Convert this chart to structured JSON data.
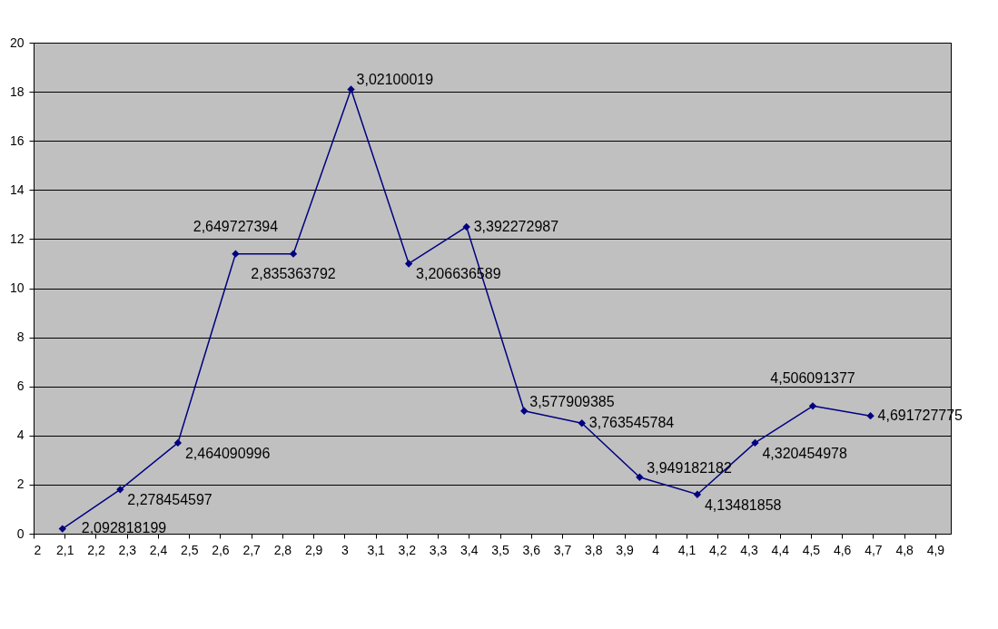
{
  "chart_data": {
    "type": "line",
    "x": [
      2.092818199,
      2.278454597,
      2.464090996,
      2.649727394,
      2.835363792,
      3.02100019,
      3.206636589,
      3.392272987,
      3.577909385,
      3.763545784,
      3.949182182,
      4.13481858,
      4.320454978,
      4.506091377,
      4.691727775
    ],
    "series": [
      {
        "color": "#000080",
        "values": [
          0.2,
          1.8,
          3.7,
          11.4,
          11.4,
          18.1,
          11.0,
          12.5,
          5.0,
          4.5,
          2.3,
          1.6,
          3.7,
          5.2,
          4.8
        ],
        "value_labels": [
          "2,092818199",
          "2,278454597",
          "2,464090996",
          "2,649727394",
          "2,835363792",
          "3,02100019",
          "3,206636589",
          "3,392272987",
          "3,577909385",
          "3,763545784",
          "3,949182182",
          "4,13481858",
          "4,320454978",
          "4,506091377",
          "4,691727775"
        ]
      }
    ],
    "xlim": [
      2,
      4.95
    ],
    "xticks": [
      2,
      {
        "value": 2.1,
        "label": "2,1"
      },
      {
        "value": 2.2,
        "label": "2,2"
      },
      {
        "value": 2.3,
        "label": "2,3"
      },
      {
        "value": 2.4,
        "label": "2,4"
      },
      {
        "value": 2.5,
        "label": "2,5"
      },
      {
        "value": 2.6,
        "label": "2,6"
      },
      {
        "value": 2.7,
        "label": "2,7"
      },
      {
        "value": 2.8,
        "label": "2,8"
      },
      {
        "value": 2.9,
        "label": "2,9"
      },
      3,
      {
        "value": 3.1,
        "label": "3,1"
      },
      {
        "value": 3.2,
        "label": "3,2"
      },
      {
        "value": 3.3,
        "label": "3,3"
      },
      {
        "value": 3.4,
        "label": "3,4"
      },
      {
        "value": 3.5,
        "label": "3,5"
      },
      {
        "value": 3.6,
        "label": "3,6"
      },
      {
        "value": 3.7,
        "label": "3,7"
      },
      {
        "value": 3.8,
        "label": "3,8"
      },
      {
        "value": 3.9,
        "label": "3,9"
      },
      4,
      {
        "value": 4.1,
        "label": "4,1"
      },
      {
        "value": 4.2,
        "label": "4,2"
      },
      {
        "value": 4.3,
        "label": "4,3"
      },
      {
        "value": 4.4,
        "label": "4,4"
      },
      {
        "value": 4.5,
        "label": "4,5"
      },
      {
        "value": 4.6,
        "label": "4,6"
      },
      {
        "value": 4.7,
        "label": "4,7"
      },
      {
        "value": 4.8,
        "label": "4,8"
      },
      {
        "value": 4.9,
        "label": "4,9"
      }
    ],
    "ylim": [
      0,
      20
    ],
    "yticks": [
      0,
      2,
      4,
      6,
      8,
      10,
      12,
      14,
      16,
      18,
      20
    ],
    "grid": "y",
    "marker": "diamond",
    "line_style": "solid"
  }
}
